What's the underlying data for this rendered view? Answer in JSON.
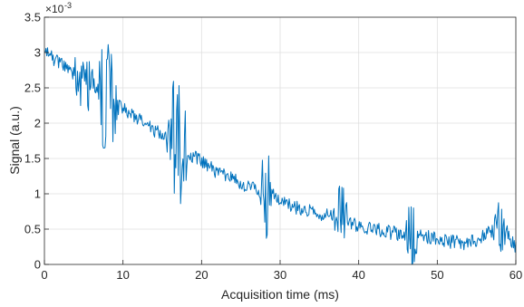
{
  "chart_data": {
    "type": "line",
    "title": "",
    "xlabel": "Acquisition time (ms)",
    "ylabel": "Signal (a.u.)",
    "y_exponent_base": "×10",
    "y_exponent_power": "-3",
    "xlim": [
      0,
      60
    ],
    "ylim": [
      0,
      3.5
    ],
    "y_scale_factor": 0.001,
    "x_ticks": [
      0,
      10,
      20,
      30,
      40,
      50,
      60
    ],
    "x_tick_labels": [
      "0",
      "10",
      "20",
      "30",
      "40",
      "50",
      "60"
    ],
    "y_ticks": [
      0,
      0.5,
      1,
      1.5,
      2,
      2.5,
      3,
      3.5
    ],
    "y_tick_labels": [
      "0",
      "0.5",
      "1",
      "1.5",
      "2",
      "2.5",
      "3",
      "3.5"
    ],
    "grid": true,
    "line_color": "#0072BD",
    "series": [
      {
        "x_start": 0,
        "x_end": 60,
        "num_points": 600,
        "trend_x": [
          0,
          2,
          4,
          6,
          8,
          10,
          12,
          14,
          16,
          18,
          20,
          22,
          24,
          26,
          28,
          30,
          32,
          34,
          36,
          38,
          40,
          42,
          44,
          46,
          48,
          50,
          52,
          54,
          56,
          58,
          60
        ],
        "trend_y": [
          3.0,
          2.85,
          2.7,
          2.55,
          2.4,
          2.2,
          2.05,
          1.9,
          1.75,
          1.6,
          1.45,
          1.3,
          1.2,
          1.1,
          1.0,
          0.9,
          0.8,
          0.75,
          0.7,
          0.62,
          0.55,
          0.5,
          0.45,
          0.42,
          0.4,
          0.36,
          0.32,
          0.3,
          0.4,
          0.6,
          0.25
        ],
        "noise_base": 0.1,
        "burst_regions": [
          {
            "start": 3.5,
            "end": 6.5,
            "amp": 0.45
          },
          {
            "start": 6.5,
            "end": 9.5,
            "amp": 0.85
          },
          {
            "start": 15.5,
            "end": 18.5,
            "amp": 0.9
          },
          {
            "start": 27.3,
            "end": 29.2,
            "amp": 0.7
          },
          {
            "start": 36.8,
            "end": 38.8,
            "amp": 0.55
          },
          {
            "start": 45.8,
            "end": 47.8,
            "amp": 0.55
          },
          {
            "start": 56.8,
            "end": 59.0,
            "amp": 0.4
          }
        ]
      }
    ]
  }
}
